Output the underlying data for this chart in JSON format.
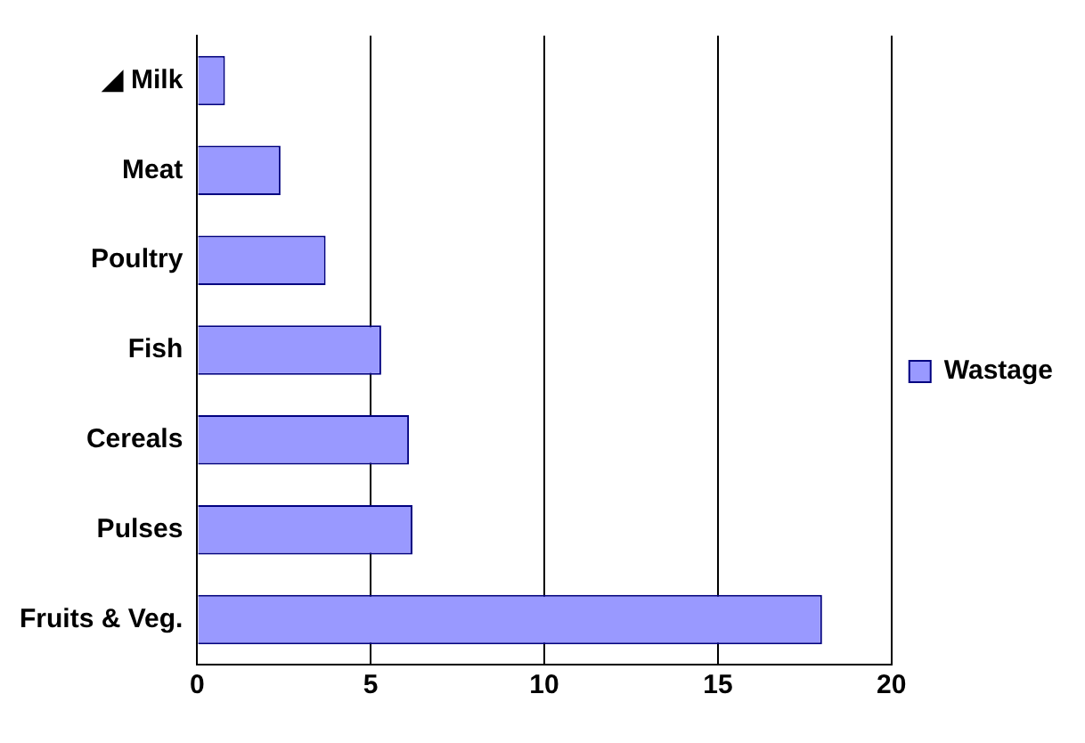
{
  "chart_data": {
    "type": "bar",
    "orientation": "horizontal",
    "categories": [
      "◢ Milk",
      "Meat",
      "Poultry",
      "Fish",
      "Cereals",
      "Pulses",
      "Fruits & Veg."
    ],
    "series": [
      {
        "name": "Wastage",
        "color": "#9999ff",
        "values": [
          0.8,
          2.4,
          3.7,
          5.3,
          6.1,
          6.2,
          18
        ]
      }
    ],
    "xlim": [
      0,
      20
    ],
    "xticks": [
      0,
      5,
      10,
      15,
      20
    ],
    "grid": "x",
    "legend": "right"
  }
}
